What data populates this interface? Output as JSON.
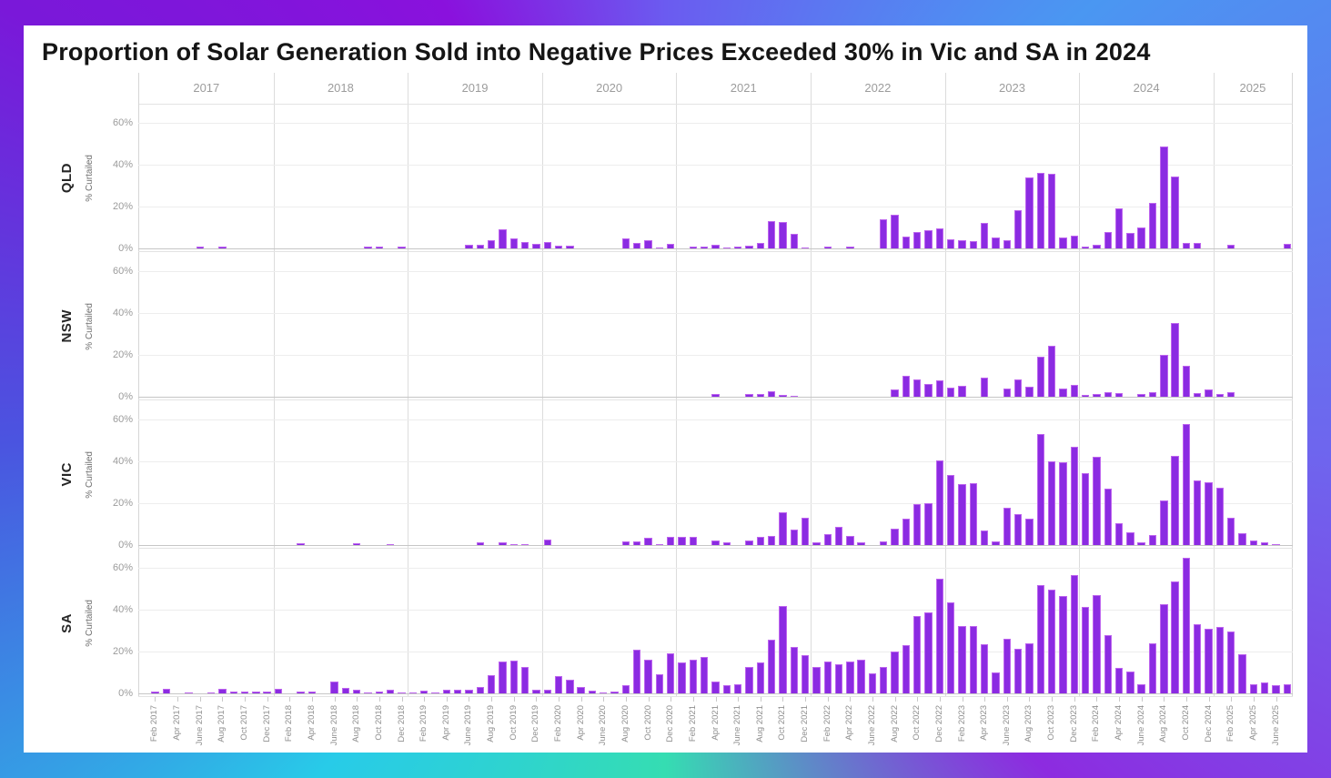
{
  "title": "Proportion of Solar Generation Sold into Negative Prices Exceeded 30% in Vic and SA in 2024",
  "colors": {
    "bar_fill": "#8b2be2",
    "bar_stroke": "#bd65ee",
    "frame_purple": "#8a11dd",
    "frame_blue": "#4a97f2",
    "frame_cyan": "#28cbe8",
    "frame_teal": "#35ddb2"
  },
  "y_axis": {
    "label": "% Curtailed",
    "ticks": [
      "0%",
      "20%",
      "40%",
      "60%"
    ],
    "tick_values": [
      0,
      20,
      40,
      60
    ]
  },
  "chart_data": {
    "type": "bar",
    "title": "Proportion of Solar Generation Sold into Negative Prices Exceeded 30% in Vic and SA in 2024",
    "ylabel": "% Curtailed",
    "ylim": [
      0,
      66
    ],
    "grid": true,
    "x_months_start": "Jan 2017",
    "x_months_end": "Jul 2025",
    "months_per_series": 103,
    "year_headers": [
      "2017",
      "2018",
      "2019",
      "2020",
      "2021",
      "2022",
      "2023",
      "2024",
      "2025"
    ],
    "x_tick_labels": [
      "Feb 2017",
      "Apr 2017",
      "June 2017",
      "Aug 2017",
      "Oct 2017",
      "Dec 2017",
      "Feb 2018",
      "Apr 2018",
      "June 2018",
      "Aug 2018",
      "Oct 2018",
      "Dec 2018",
      "Feb 2019",
      "Apr 2019",
      "June 2019",
      "Aug 2019",
      "Oct 2019",
      "Dec 2019",
      "Feb 2020",
      "Apr 2020",
      "June 2020",
      "Aug 2020",
      "Oct 2020",
      "Dec 2020",
      "Feb 2021",
      "Apr 2021",
      "June 2021",
      "Aug 2021",
      "Oct 2021",
      "Dec 2021",
      "Feb 2022",
      "Apr 2022",
      "June 2022",
      "Aug 2022",
      "Oct 2022",
      "Dec 2022",
      "Feb 2023",
      "Apr 2023",
      "June 2023",
      "Aug 2023",
      "Oct 2023",
      "Dec 2023",
      "Feb 2024",
      "Apr 2024",
      "June 2024",
      "Aug 2024",
      "Oct 2024",
      "Dec 2024",
      "Feb 2025",
      "Apr 2025",
      "June 2025"
    ],
    "series": [
      {
        "name": "QLD",
        "values": [
          0,
          0,
          0,
          0,
          0,
          0.7,
          0,
          1,
          0,
          0,
          0,
          0,
          0,
          0,
          0,
          0,
          0,
          0,
          0,
          0,
          1,
          0.8,
          0,
          0.8,
          0,
          0,
          0,
          0,
          0,
          1.8,
          1.8,
          4,
          9,
          5,
          3,
          2,
          3,
          1.3,
          1.3,
          0,
          0,
          0,
          0,
          5,
          2.5,
          3.7,
          0.5,
          2,
          0,
          0.8,
          0.8,
          1.7,
          0.6,
          0.8,
          1.3,
          2.8,
          13,
          12.5,
          7,
          0.5,
          0,
          0.7,
          0,
          1,
          0,
          0,
          14,
          16,
          5.5,
          8,
          8.7,
          9.5,
          4.2,
          4,
          3.5,
          12.3,
          5.3,
          3.9,
          18.2,
          33.7,
          36.2,
          35.8,
          5.3,
          6,
          0.7,
          1.7,
          7.7,
          19,
          7.3,
          9.8,
          21.8,
          48.8,
          34.4,
          2.5,
          2.8,
          0,
          0,
          1.7,
          0,
          0,
          0,
          0,
          2
        ]
      },
      {
        "name": "NSW",
        "values": [
          0,
          0,
          0,
          0,
          0,
          0,
          0,
          0,
          0,
          0,
          0,
          0,
          0,
          0,
          0,
          0,
          0,
          0,
          0,
          0,
          0,
          0,
          0,
          0,
          0,
          0,
          0,
          0,
          0,
          0,
          0,
          0,
          0,
          0,
          0,
          0,
          0,
          0,
          0,
          0,
          0,
          0,
          0,
          0,
          0,
          0,
          0,
          0,
          0,
          0,
          0,
          1.2,
          0,
          0,
          1.2,
          1.5,
          2.7,
          0.7,
          0.4,
          0,
          0,
          0,
          0,
          0,
          0,
          0,
          0,
          3.3,
          10,
          8.1,
          6.2,
          7.7,
          4.4,
          5.2,
          0,
          9.2,
          0,
          3.7,
          8.1,
          4.7,
          19.3,
          24.4,
          4.1,
          5.6,
          0.7,
          1.2,
          2.2,
          1.8,
          0,
          1.2,
          2.2,
          20,
          35.1,
          14.8,
          1.8,
          3.5,
          1.2,
          2.1,
          0,
          0,
          0,
          0,
          0
        ]
      },
      {
        "name": "VIC",
        "values": [
          0,
          0,
          0,
          0,
          0,
          0,
          0,
          0,
          0,
          0,
          0,
          0,
          0,
          0,
          0.7,
          0,
          0,
          0,
          0,
          0.7,
          0,
          0,
          0.6,
          0,
          0,
          0,
          0,
          0,
          0,
          0,
          1.1,
          0,
          1.1,
          0.4,
          0.4,
          0,
          2.5,
          0,
          0,
          0,
          0,
          0,
          0,
          1.8,
          1.8,
          3.4,
          0.5,
          4,
          3.8,
          3.8,
          0,
          2,
          1.1,
          0,
          2,
          4,
          4.5,
          15.5,
          7.2,
          13,
          1.1,
          5.4,
          8.7,
          4.2,
          1.4,
          0,
          1.7,
          7.7,
          12.7,
          19.7,
          20,
          40.6,
          33.5,
          29,
          29.5,
          6.8,
          1.7,
          18,
          14.8,
          12.5,
          53,
          40,
          39.5,
          47,
          34.2,
          42,
          27,
          10.3,
          6.2,
          1.1,
          4.8,
          21.4,
          42.8,
          58,
          31,
          30,
          27.3,
          13.1,
          5.8,
          2.1,
          1.1,
          0.4,
          0
        ]
      },
      {
        "name": "SA",
        "values": [
          0,
          1,
          2,
          0,
          0.5,
          0,
          0.5,
          2,
          1,
          0.8,
          1,
          1,
          2.2,
          0,
          0.8,
          1,
          0,
          5.5,
          2.5,
          1.7,
          0.4,
          0.7,
          1.7,
          0.3,
          0.4,
          1.2,
          0.4,
          1.7,
          1.9,
          1.7,
          3,
          8.7,
          15.2,
          15.6,
          12.4,
          1.9,
          1.7,
          8.3,
          6.5,
          3,
          1.4,
          0.4,
          1,
          4.1,
          21,
          16.3,
          9.2,
          19.3,
          14.9,
          16,
          17.6,
          5.6,
          3.8,
          4.2,
          12.4,
          14.9,
          25.7,
          41.9,
          22.1,
          18.3,
          12.8,
          15.3,
          14,
          15.3,
          16.3,
          9.7,
          12.8,
          20,
          23,
          37,
          38.5,
          55,
          43.4,
          32.2,
          32.2,
          23.5,
          10.1,
          26.2,
          21.3,
          24.1,
          51.7,
          49.7,
          46.4,
          56.6,
          41.3,
          46.9,
          28,
          12.2,
          10.5,
          4.2,
          23.8,
          42.7,
          53.4,
          64.6,
          32.9,
          30.8,
          31.9,
          29.7,
          18.9,
          4.2,
          5.3,
          3.9,
          4.5
        ]
      }
    ]
  }
}
